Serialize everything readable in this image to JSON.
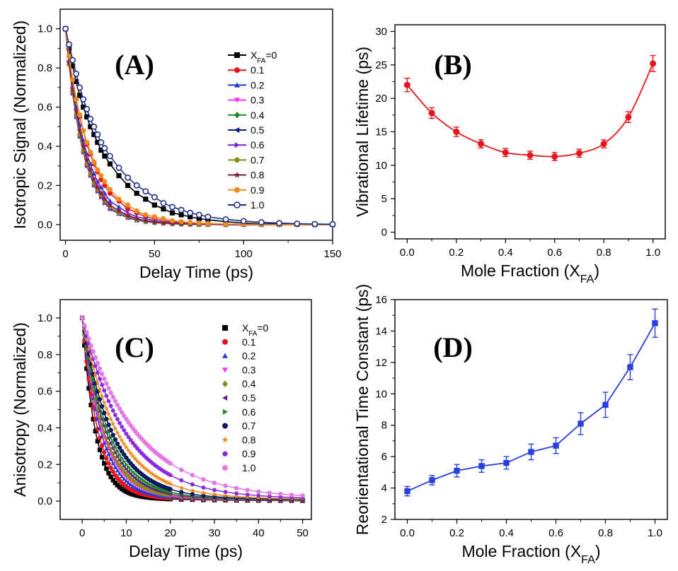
{
  "chart_data": [
    {
      "id": "A",
      "type": "line",
      "panel_label": "(A)",
      "xlabel": "Delay Time (ps)",
      "ylabel": "Isotropic Signal (Normalized)",
      "xlim": [
        -3,
        150
      ],
      "ylim": [
        -0.08,
        1.1
      ],
      "xticks": [
        0,
        50,
        100,
        150
      ],
      "yticks": [
        0.0,
        0.2,
        0.4,
        0.6,
        0.8,
        1.0
      ],
      "legend_position": "top-right",
      "legend_title": "X",
      "legend_title_sub": "FA",
      "legend_title_suffix": "=0",
      "series": [
        {
          "name": "X_FA=0",
          "label": "",
          "color": "#000000",
          "marker": "square",
          "x": [
            0,
            2,
            4,
            6,
            8,
            10,
            12,
            14,
            16,
            18,
            20,
            22,
            25,
            30,
            35,
            40,
            45,
            50,
            55,
            60,
            65,
            70,
            75,
            80,
            90,
            100,
            110,
            120,
            130,
            140,
            150
          ],
          "y": [
            1.0,
            0.9,
            0.81,
            0.73,
            0.66,
            0.6,
            0.55,
            0.5,
            0.46,
            0.42,
            0.38,
            0.35,
            0.31,
            0.25,
            0.2,
            0.16,
            0.13,
            0.1,
            0.08,
            0.06,
            0.05,
            0.04,
            0.03,
            0.025,
            0.015,
            0.008,
            0.005,
            0.003,
            0.002,
            0.001,
            0.0
          ]
        },
        {
          "name": "0.1",
          "label": "0.1",
          "color": "#e8141c",
          "marker": "circle",
          "x": [
            0,
            2,
            4,
            6,
            8,
            10,
            12,
            14,
            16,
            18,
            20,
            22,
            25,
            30,
            35,
            40,
            45,
            50,
            55,
            60,
            65,
            70,
            75,
            80,
            90,
            100,
            110,
            120,
            130,
            140,
            150
          ],
          "y": [
            1.0,
            0.86,
            0.74,
            0.64,
            0.55,
            0.48,
            0.41,
            0.36,
            0.31,
            0.27,
            0.23,
            0.2,
            0.16,
            0.12,
            0.08,
            0.06,
            0.04,
            0.03,
            0.02,
            0.015,
            0.01,
            0.008,
            0.005,
            0.004,
            0.002,
            0.001,
            0.0,
            0.0,
            0.0,
            0.0,
            0.0
          ]
        },
        {
          "name": "0.2",
          "label": "0.2",
          "color": "#1f3bd6",
          "marker": "triangle-up",
          "x": [
            0,
            2,
            4,
            6,
            8,
            10,
            12,
            14,
            16,
            18,
            20,
            22,
            25,
            30,
            35,
            40,
            45,
            50,
            55,
            60,
            65,
            70,
            75,
            80,
            90,
            100,
            110,
            120,
            130,
            140,
            150
          ],
          "y": [
            1.0,
            0.84,
            0.71,
            0.6,
            0.51,
            0.43,
            0.36,
            0.31,
            0.26,
            0.22,
            0.19,
            0.16,
            0.12,
            0.09,
            0.06,
            0.04,
            0.03,
            0.02,
            0.013,
            0.009,
            0.006,
            0.004,
            0.003,
            0.002,
            0.001,
            0.0,
            0.0,
            0.0,
            0.0,
            0.0,
            0.0
          ]
        },
        {
          "name": "0.3",
          "label": "0.3",
          "color": "#ff33ff",
          "marker": "triangle-down",
          "x": [
            0,
            2,
            4,
            6,
            8,
            10,
            12,
            14,
            16,
            18,
            20,
            22,
            25,
            30,
            35,
            40,
            45,
            50,
            55,
            60,
            65,
            70,
            75,
            80,
            90,
            100,
            110,
            120,
            130,
            140,
            150
          ],
          "y": [
            1.0,
            0.83,
            0.69,
            0.58,
            0.48,
            0.4,
            0.34,
            0.28,
            0.23,
            0.2,
            0.16,
            0.14,
            0.1,
            0.07,
            0.05,
            0.03,
            0.02,
            0.015,
            0.01,
            0.007,
            0.005,
            0.003,
            0.002,
            0.001,
            0.0,
            0.0,
            0.0,
            0.0,
            0.0,
            0.0,
            0.0
          ]
        },
        {
          "name": "0.4",
          "label": "0.4",
          "color": "#1f8a2e",
          "marker": "diamond",
          "x": [
            0,
            2,
            4,
            6,
            8,
            10,
            12,
            14,
            16,
            18,
            20,
            22,
            25,
            30,
            35,
            40,
            45,
            50,
            55,
            60,
            65,
            70,
            75,
            80,
            90,
            100,
            110,
            120,
            130,
            140,
            150
          ],
          "y": [
            1.0,
            0.82,
            0.68,
            0.56,
            0.46,
            0.38,
            0.31,
            0.26,
            0.21,
            0.18,
            0.15,
            0.12,
            0.09,
            0.06,
            0.04,
            0.025,
            0.017,
            0.011,
            0.008,
            0.005,
            0.003,
            0.002,
            0.001,
            0.001,
            0.0,
            0.0,
            0.0,
            0.0,
            0.0,
            0.0,
            0.0
          ]
        },
        {
          "name": "0.5",
          "label": "0.5",
          "color": "#0a1a8c",
          "marker": "triangle-left",
          "x": [
            0,
            2,
            4,
            6,
            8,
            10,
            12,
            14,
            16,
            18,
            20,
            22,
            25,
            30,
            35,
            40,
            45,
            50,
            55,
            60,
            65,
            70,
            75,
            80,
            90,
            100,
            110,
            120,
            130,
            140,
            150
          ],
          "y": [
            1.0,
            0.82,
            0.67,
            0.55,
            0.45,
            0.37,
            0.3,
            0.25,
            0.2,
            0.17,
            0.14,
            0.11,
            0.08,
            0.055,
            0.035,
            0.022,
            0.015,
            0.01,
            0.007,
            0.004,
            0.003,
            0.002,
            0.001,
            0.001,
            0.0,
            0.0,
            0.0,
            0.0,
            0.0,
            0.0,
            0.0
          ]
        },
        {
          "name": "0.6",
          "label": "0.6",
          "color": "#7a1fd6",
          "marker": "triangle-right",
          "x": [
            0,
            2,
            4,
            6,
            8,
            10,
            12,
            14,
            16,
            18,
            20,
            22,
            25,
            30,
            35,
            40,
            45,
            50,
            55,
            60,
            65,
            70,
            75,
            80,
            90,
            100,
            110,
            120,
            130,
            140,
            150
          ],
          "y": [
            1.0,
            0.82,
            0.67,
            0.55,
            0.45,
            0.37,
            0.3,
            0.25,
            0.2,
            0.17,
            0.14,
            0.11,
            0.08,
            0.055,
            0.035,
            0.022,
            0.015,
            0.01,
            0.007,
            0.004,
            0.003,
            0.002,
            0.001,
            0.001,
            0.0,
            0.0,
            0.0,
            0.0,
            0.0,
            0.0,
            0.0
          ]
        },
        {
          "name": "0.7",
          "label": "0.7",
          "color": "#8a8a1a",
          "marker": "hexagon",
          "x": [
            0,
            2,
            4,
            6,
            8,
            10,
            12,
            14,
            16,
            18,
            20,
            22,
            25,
            30,
            35,
            40,
            45,
            50,
            55,
            60,
            65,
            70,
            75,
            80,
            90,
            100,
            110,
            120,
            130,
            140,
            150
          ],
          "y": [
            1.0,
            0.82,
            0.68,
            0.56,
            0.46,
            0.38,
            0.31,
            0.26,
            0.21,
            0.18,
            0.15,
            0.12,
            0.09,
            0.06,
            0.04,
            0.025,
            0.017,
            0.011,
            0.008,
            0.005,
            0.003,
            0.002,
            0.001,
            0.001,
            0.0,
            0.0,
            0.0,
            0.0,
            0.0,
            0.0,
            0.0
          ]
        },
        {
          "name": "0.8",
          "label": "0.8",
          "color": "#7a1f3c",
          "marker": "star",
          "x": [
            0,
            2,
            4,
            6,
            8,
            10,
            12,
            14,
            16,
            18,
            20,
            22,
            25,
            30,
            35,
            40,
            45,
            50,
            55,
            60,
            65,
            70,
            75,
            80,
            90,
            100,
            110,
            120,
            130,
            140,
            150
          ],
          "y": [
            1.0,
            0.83,
            0.69,
            0.58,
            0.48,
            0.4,
            0.33,
            0.28,
            0.23,
            0.19,
            0.16,
            0.13,
            0.1,
            0.07,
            0.045,
            0.03,
            0.02,
            0.013,
            0.009,
            0.006,
            0.004,
            0.003,
            0.002,
            0.001,
            0.0,
            0.0,
            0.0,
            0.0,
            0.0,
            0.0,
            0.0
          ]
        },
        {
          "name": "0.9",
          "label": "0.9",
          "color": "#f08a1c",
          "marker": "circle",
          "x": [
            0,
            2,
            4,
            6,
            8,
            10,
            12,
            14,
            16,
            18,
            20,
            22,
            25,
            30,
            35,
            40,
            45,
            50,
            55,
            60,
            65,
            70,
            75,
            80,
            90,
            100,
            110,
            120,
            130,
            140,
            150
          ],
          "y": [
            1.0,
            0.86,
            0.74,
            0.64,
            0.56,
            0.48,
            0.42,
            0.37,
            0.32,
            0.28,
            0.25,
            0.22,
            0.18,
            0.13,
            0.1,
            0.07,
            0.05,
            0.04,
            0.03,
            0.02,
            0.015,
            0.011,
            0.008,
            0.006,
            0.003,
            0.002,
            0.001,
            0.0,
            0.0,
            0.0,
            0.0
          ]
        },
        {
          "name": "1.0",
          "label": "1.0",
          "color": "#1f2f8c",
          "marker": "circle-open",
          "x": [
            0,
            2,
            4,
            6,
            8,
            10,
            12,
            14,
            16,
            18,
            20,
            22,
            25,
            30,
            35,
            40,
            45,
            50,
            55,
            60,
            65,
            70,
            75,
            80,
            90,
            100,
            110,
            120,
            130,
            140,
            150
          ],
          "y": [
            1.0,
            0.92,
            0.84,
            0.77,
            0.7,
            0.64,
            0.59,
            0.54,
            0.5,
            0.46,
            0.42,
            0.39,
            0.35,
            0.29,
            0.24,
            0.2,
            0.17,
            0.14,
            0.11,
            0.09,
            0.075,
            0.06,
            0.05,
            0.04,
            0.027,
            0.018,
            0.012,
            0.008,
            0.005,
            0.003,
            0.002
          ]
        }
      ]
    },
    {
      "id": "B",
      "type": "line",
      "panel_label": "(B)",
      "xlabel": "Mole Fraction (X",
      "xlabel_sub": "FA",
      "xlabel_suffix": ")",
      "ylabel": "Vibrational Lifetime (ps)",
      "xlim": [
        -0.05,
        1.05
      ],
      "ylim": [
        -1,
        31
      ],
      "xticks": [
        0.0,
        0.2,
        0.4,
        0.6,
        0.8,
        1.0
      ],
      "yticks": [
        0,
        5,
        10,
        15,
        20,
        25,
        30
      ],
      "series": [
        {
          "name": "",
          "color": "#e8141c",
          "marker": "circle",
          "x": [
            0.0,
            0.1,
            0.2,
            0.3,
            0.4,
            0.5,
            0.6,
            0.7,
            0.8,
            0.9,
            1.0
          ],
          "y": [
            22.0,
            17.8,
            15.0,
            13.2,
            11.9,
            11.5,
            11.3,
            11.8,
            13.2,
            17.2,
            25.2
          ],
          "err": [
            1.0,
            0.8,
            0.7,
            0.6,
            0.6,
            0.6,
            0.6,
            0.6,
            0.6,
            0.8,
            1.2
          ]
        }
      ]
    },
    {
      "id": "C",
      "type": "scatter",
      "panel_label": "(C)",
      "xlabel": "Delay Time (ps)",
      "ylabel": "Anisotropy (Normalized)",
      "xlim": [
        -5,
        52
      ],
      "ylim": [
        -0.1,
        1.1
      ],
      "xticks": [
        0,
        10,
        20,
        30,
        40,
        50
      ],
      "yticks": [
        0.0,
        0.2,
        0.4,
        0.6,
        0.8,
        1.0
      ],
      "legend_position": "top-right",
      "legend_title": "X",
      "legend_title_sub": "FA",
      "legend_title_suffix": "=0",
      "series": [
        {
          "name": "X_FA=0",
          "label": "",
          "color": "#000000",
          "marker": "square",
          "tau": 3.0
        },
        {
          "name": "0.1",
          "label": "0.1",
          "color": "#e8141c",
          "marker": "circle",
          "tau": 3.6
        },
        {
          "name": "0.2",
          "label": "0.2",
          "color": "#1f3bd6",
          "marker": "triangle-up",
          "tau": 4.2
        },
        {
          "name": "0.3",
          "label": "0.3",
          "color": "#ff33ff",
          "marker": "triangle-down",
          "tau": 4.6
        },
        {
          "name": "0.4",
          "label": "0.4",
          "color": "#8a8a1a",
          "marker": "diamond",
          "tau": 4.9
        },
        {
          "name": "0.5",
          "label": "0.5",
          "color": "#6a1a8c",
          "marker": "triangle-left",
          "tau": 5.4
        },
        {
          "name": "0.6",
          "label": "0.6",
          "color": "#1f8a2e",
          "marker": "triangle-right",
          "tau": 5.9
        },
        {
          "name": "0.7",
          "label": "0.7",
          "color": "#0a1a5c",
          "marker": "circle",
          "tau": 6.6
        },
        {
          "name": "0.8",
          "label": "0.8",
          "color": "#f08a1c",
          "marker": "star",
          "tau": 7.8
        },
        {
          "name": "0.9",
          "label": "0.9",
          "color": "#8a2be2",
          "marker": "hexagon",
          "tau": 9.6
        },
        {
          "name": "1.0",
          "label": "1.0",
          "color": "#e37ae3",
          "marker": "circle",
          "tau": 12.0
        }
      ]
    },
    {
      "id": "D",
      "type": "line",
      "panel_label": "(D)",
      "xlabel": "Mole Fraction (X",
      "xlabel_sub": "FA",
      "xlabel_suffix": ")",
      "ylabel": "Reorientational Time Constant (ps)",
      "xlim": [
        -0.05,
        1.05
      ],
      "ylim": [
        2,
        16
      ],
      "xticks": [
        0.0,
        0.2,
        0.4,
        0.6,
        0.8,
        1.0
      ],
      "yticks": [
        2,
        4,
        6,
        8,
        10,
        12,
        14,
        16
      ],
      "series": [
        {
          "name": "",
          "color": "#2a3fe0",
          "marker": "square",
          "x": [
            0.0,
            0.1,
            0.2,
            0.3,
            0.4,
            0.5,
            0.6,
            0.7,
            0.8,
            0.9,
            1.0
          ],
          "y": [
            3.8,
            4.5,
            5.1,
            5.4,
            5.6,
            6.3,
            6.7,
            8.1,
            9.3,
            11.7,
            14.5
          ],
          "err": [
            0.3,
            0.3,
            0.4,
            0.4,
            0.4,
            0.5,
            0.5,
            0.7,
            0.8,
            0.8,
            0.9
          ]
        }
      ]
    }
  ]
}
